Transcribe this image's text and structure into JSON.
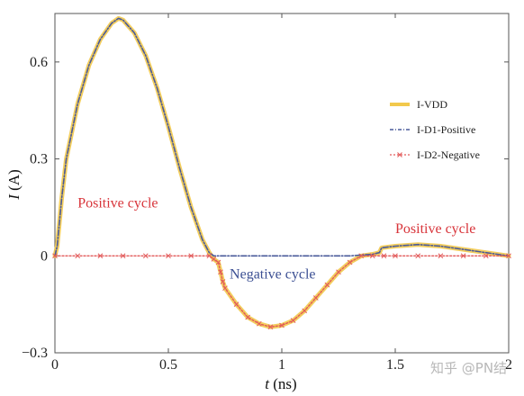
{
  "chart_data": {
    "type": "line",
    "xlabel_var": "t",
    "xlabel_unit": " (ns)",
    "ylabel_var": "I",
    "ylabel_unit": " (A)",
    "xlim": [
      0,
      2
    ],
    "ylim": [
      -0.3,
      0.75
    ],
    "xticks": [
      0,
      0.5,
      1,
      1.5,
      2
    ],
    "xtick_labels": [
      "0",
      "0.5",
      "1",
      "1.5",
      "2"
    ],
    "yticks": [
      -0.3,
      0,
      0.3,
      0.6
    ],
    "ytick_labels": [
      "−0.3",
      "0",
      "0.3",
      "0.6"
    ],
    "grid": false,
    "legend_position": "right",
    "series": [
      {
        "name": "I-VDD",
        "color": "#f2c94c",
        "style": "solid",
        "x": [
          0,
          0.01,
          0.03,
          0.05,
          0.1,
          0.15,
          0.2,
          0.25,
          0.28,
          0.3,
          0.35,
          0.4,
          0.45,
          0.5,
          0.55,
          0.6,
          0.65,
          0.68,
          0.7,
          0.72,
          0.73,
          0.74,
          0.75,
          0.8,
          0.85,
          0.9,
          0.95,
          1.0,
          1.05,
          1.1,
          1.15,
          1.2,
          1.25,
          1.3,
          1.35,
          1.4,
          1.43,
          1.44,
          1.5,
          1.6,
          1.7,
          1.8,
          1.9,
          2.0
        ],
        "y": [
          0,
          0.03,
          0.18,
          0.3,
          0.47,
          0.59,
          0.67,
          0.72,
          0.735,
          0.73,
          0.69,
          0.62,
          0.52,
          0.4,
          0.27,
          0.15,
          0.05,
          0.01,
          -0.01,
          -0.02,
          -0.05,
          -0.08,
          -0.1,
          -0.15,
          -0.19,
          -0.21,
          -0.22,
          -0.215,
          -0.2,
          -0.17,
          -0.13,
          -0.09,
          -0.05,
          -0.02,
          0,
          0.005,
          0.01,
          0.025,
          0.03,
          0.035,
          0.03,
          0.02,
          0.01,
          0
        ]
      },
      {
        "name": "I-D1-Positive",
        "color": "#4a5a9a",
        "style": "dashdot",
        "x": [
          0,
          0.01,
          0.03,
          0.05,
          0.1,
          0.15,
          0.2,
          0.25,
          0.28,
          0.3,
          0.35,
          0.4,
          0.45,
          0.5,
          0.55,
          0.6,
          0.65,
          0.68,
          0.7,
          0.8,
          0.9,
          1.0,
          1.1,
          1.2,
          1.3,
          1.4,
          1.43,
          1.44,
          1.5,
          1.6,
          1.7,
          1.8,
          1.9,
          2.0
        ],
        "y": [
          0,
          0.03,
          0.18,
          0.3,
          0.47,
          0.59,
          0.67,
          0.72,
          0.735,
          0.73,
          0.69,
          0.62,
          0.52,
          0.4,
          0.27,
          0.15,
          0.05,
          0.01,
          0,
          0,
          0,
          0,
          0,
          0,
          0,
          0.005,
          0.01,
          0.025,
          0.03,
          0.035,
          0.03,
          0.02,
          0.01,
          0
        ]
      },
      {
        "name": "I-D2-Negative",
        "color": "#e25a5a",
        "style": "dotted-x",
        "x": [
          0,
          0.1,
          0.2,
          0.3,
          0.4,
          0.5,
          0.6,
          0.68,
          0.7,
          0.72,
          0.73,
          0.74,
          0.75,
          0.8,
          0.85,
          0.9,
          0.95,
          1.0,
          1.05,
          1.1,
          1.15,
          1.2,
          1.25,
          1.3,
          1.35,
          1.4,
          1.45,
          1.5,
          1.6,
          1.7,
          1.8,
          1.9,
          2.0
        ],
        "y": [
          0,
          0,
          0,
          0,
          0,
          0,
          0,
          0,
          -0.01,
          -0.02,
          -0.05,
          -0.08,
          -0.1,
          -0.15,
          -0.19,
          -0.21,
          -0.22,
          -0.215,
          -0.2,
          -0.17,
          -0.13,
          -0.09,
          -0.05,
          -0.02,
          0,
          0,
          0,
          0,
          0,
          0,
          0,
          0,
          0
        ]
      }
    ],
    "annotations": [
      {
        "text": "Positive cycle",
        "x": 0.1,
        "y": 0.15,
        "color": "#d8343a"
      },
      {
        "text": "Negative cycle",
        "x": 0.77,
        "y": -0.07,
        "color": "#3b4f93"
      },
      {
        "text": "Positive cycle",
        "x": 1.5,
        "y": 0.07,
        "color": "#d8343a"
      }
    ]
  },
  "watermark": "知乎 @PN结"
}
